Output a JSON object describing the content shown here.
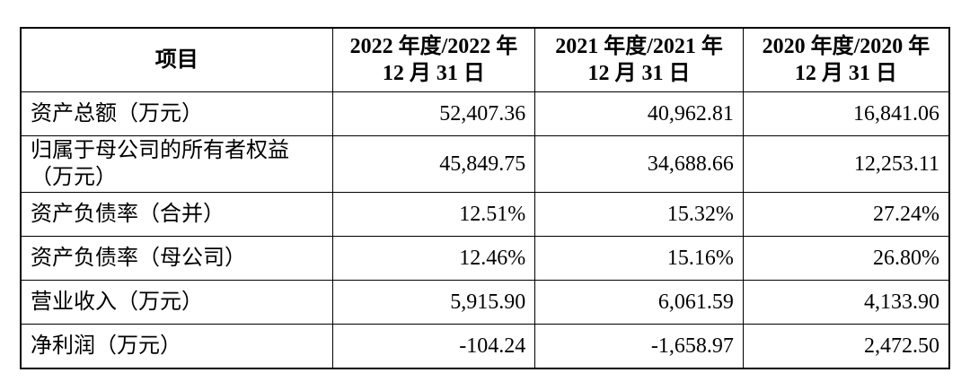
{
  "table": {
    "header": [
      [
        "项目"
      ],
      [
        "2022 年度/2022 年",
        "12 月 31 日"
      ],
      [
        "2021 年度/2021 年",
        "12 月 31 日"
      ],
      [
        "2020 年度/2020 年",
        "12 月 31 日"
      ]
    ],
    "rows": [
      [
        [
          "资产总额（万元）"
        ],
        "52,407.36",
        "40,962.81",
        "16,841.06"
      ],
      [
        [
          "归属于母公司的所有者权益",
          "（万元）"
        ],
        "45,849.75",
        "34,688.66",
        "12,253.11"
      ],
      [
        [
          "资产负债率（合并）"
        ],
        "12.51%",
        "15.32%",
        "27.24%"
      ],
      [
        [
          "资产负债率（母公司）"
        ],
        "12.46%",
        "15.16%",
        "26.80%"
      ],
      [
        [
          "营业收入（万元）"
        ],
        "5,915.90",
        "6,061.59",
        "4,133.90"
      ],
      [
        [
          "净利润（万元）"
        ],
        "-104.24",
        "-1,658.97",
        "2,472.50"
      ]
    ]
  }
}
